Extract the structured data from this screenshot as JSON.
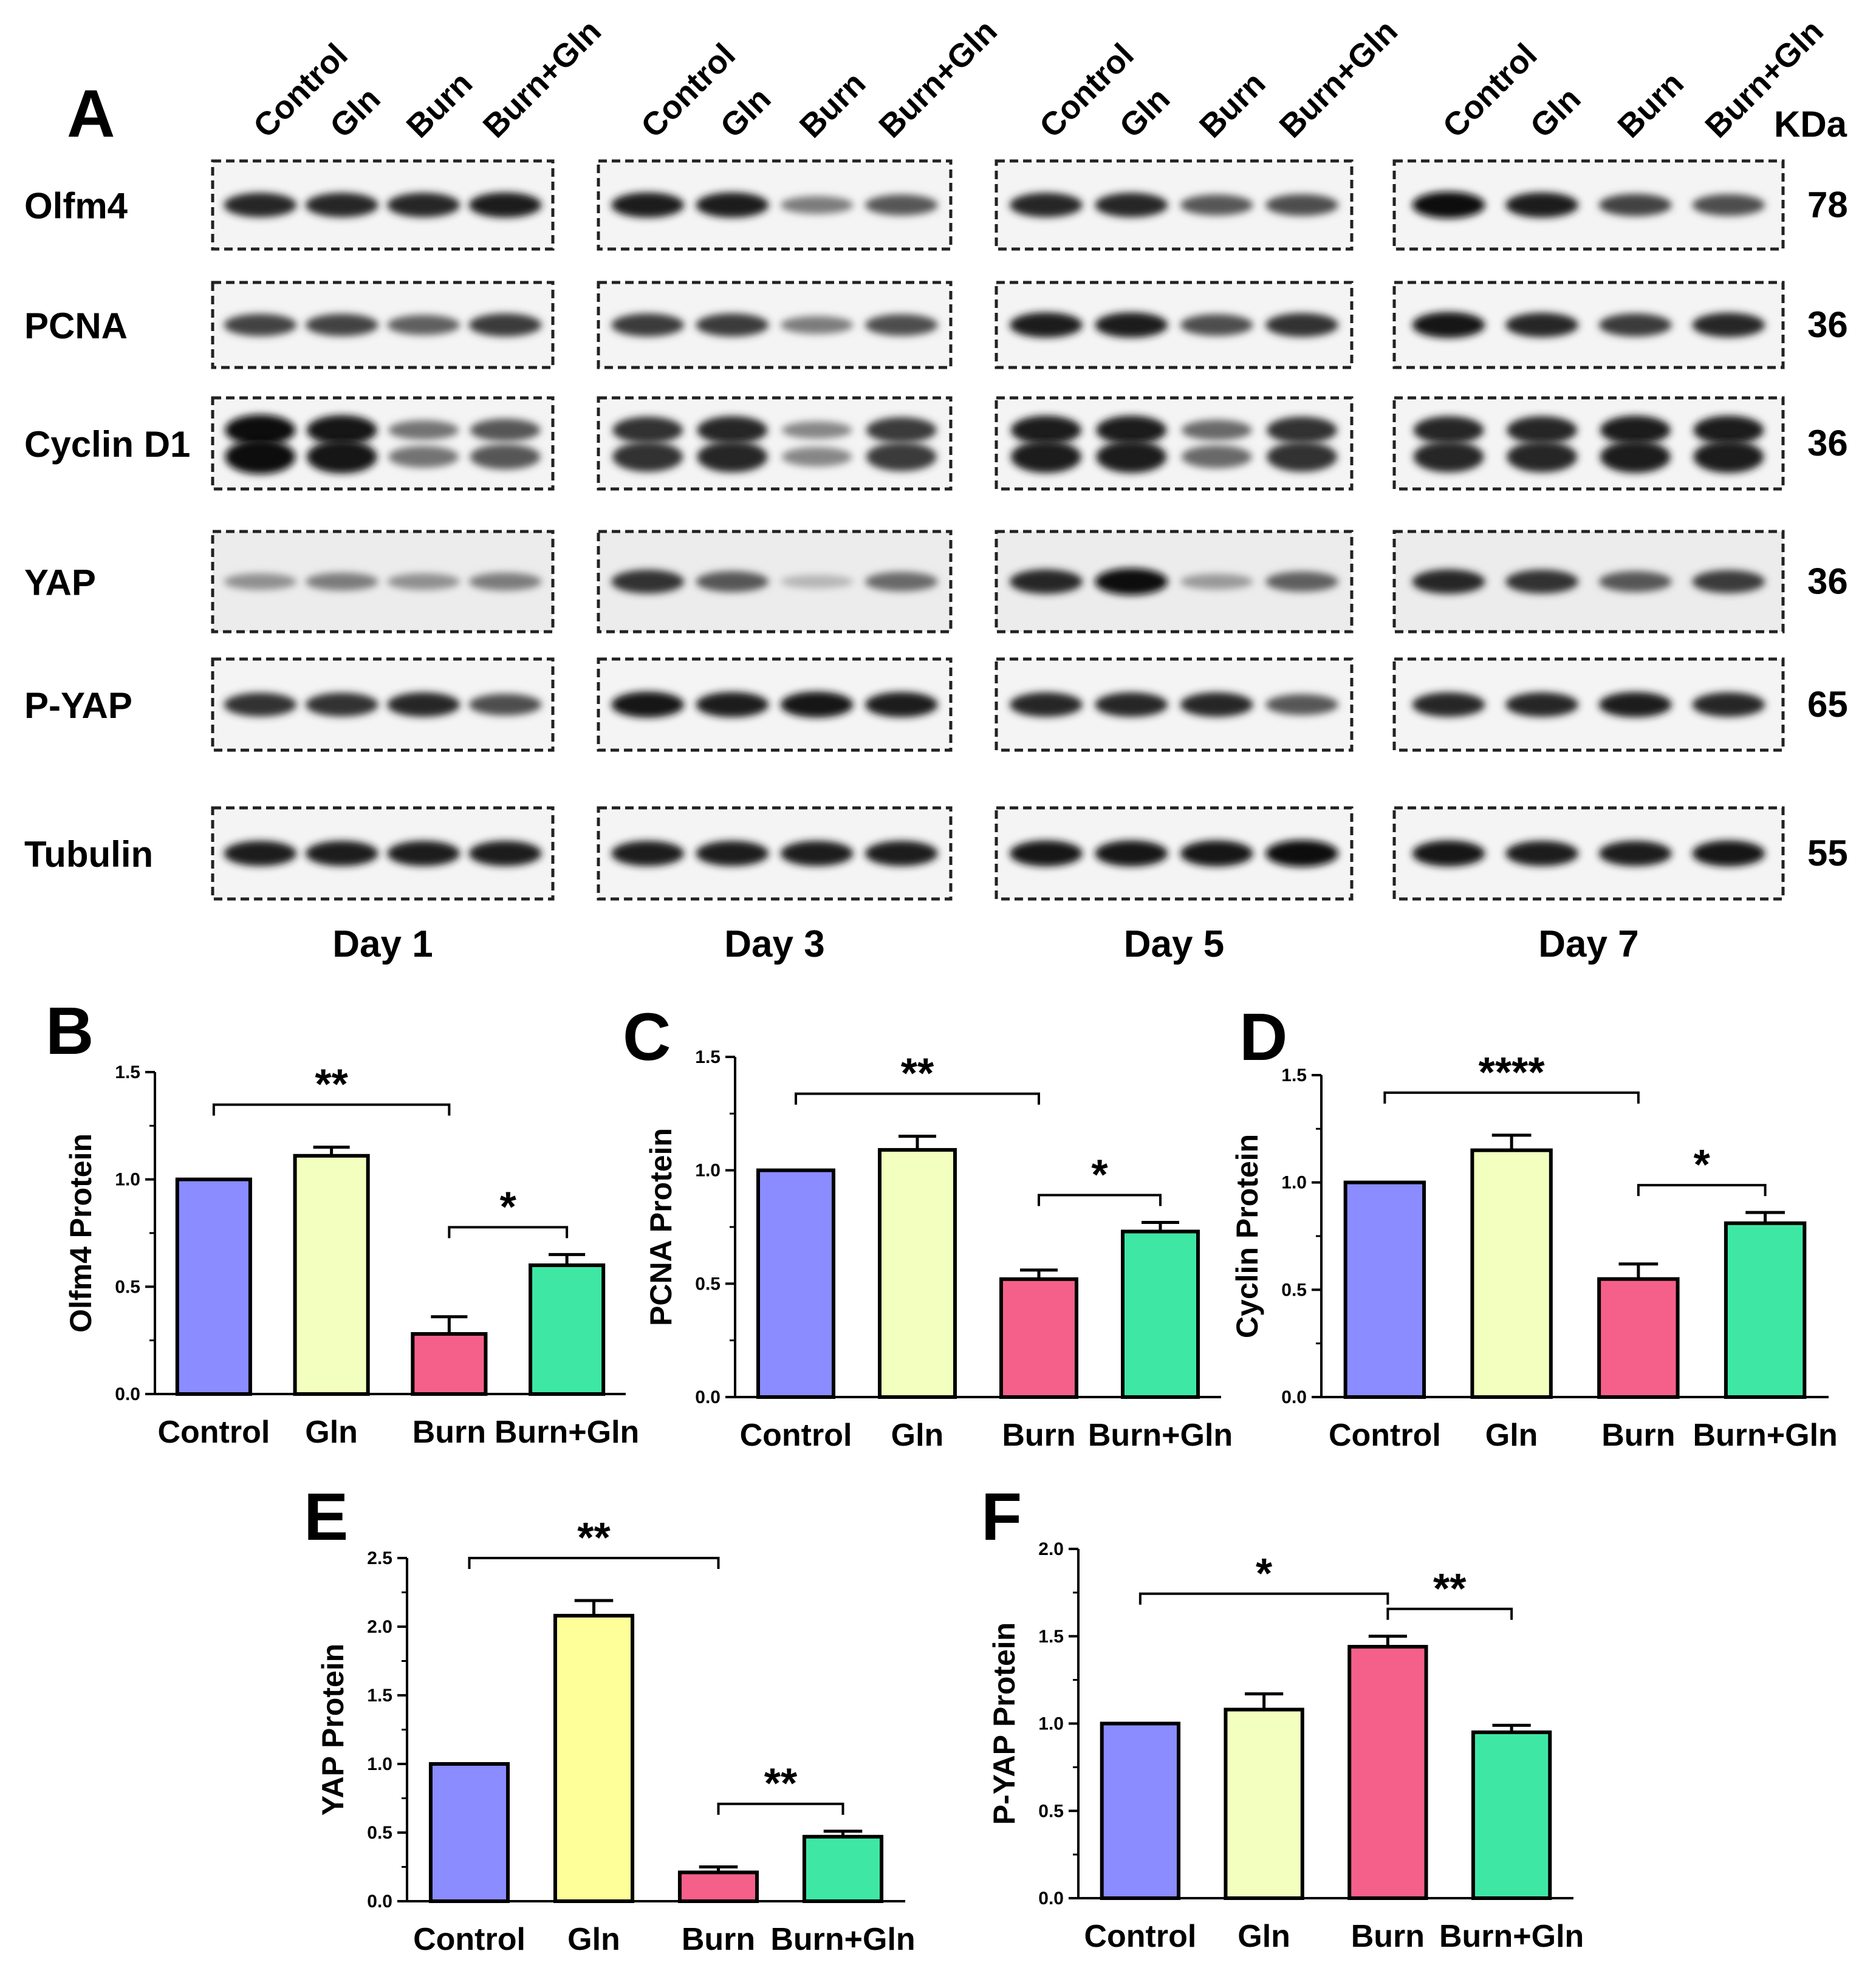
{
  "figure": {
    "panel_a": {
      "letter": "A",
      "lanes": [
        "Control",
        "Gln",
        "Burn",
        "Burn+Gln"
      ],
      "kda_header": "KDa",
      "days": [
        "Day 1",
        "Day 3",
        "Day 5",
        "Day 7"
      ],
      "rows": [
        {
          "label": "Olfm4",
          "kda": "78"
        },
        {
          "label": "PCNA",
          "kda": "36"
        },
        {
          "label": "Cyclin D1",
          "kda": "36"
        },
        {
          "label": "YAP",
          "kda": "36"
        },
        {
          "label": "P-YAP",
          "kda": "65"
        },
        {
          "label": "Tubulin",
          "kda": "55"
        }
      ]
    }
  },
  "chart_data": [
    {
      "panel": "B",
      "type": "bar",
      "ylabel": "Olfm4 Protein",
      "ylim": [
        0,
        1.5
      ],
      "yticks": [
        "0.0",
        "0.5",
        "1.0",
        "1.5"
      ],
      "categories": [
        "Control",
        "Gln",
        "Burn",
        "Burn+Gln"
      ],
      "values": [
        1.0,
        1.11,
        0.28,
        0.6
      ],
      "errors": [
        0,
        0.04,
        0.08,
        0.05
      ],
      "colors": [
        "#8a8cff",
        "#f2ffbf",
        "#f5608a",
        "#3ee8a4"
      ],
      "significance": [
        {
          "from": 0,
          "to": 2,
          "label": "**"
        },
        {
          "from": 2,
          "to": 3,
          "label": "*"
        }
      ]
    },
    {
      "panel": "C",
      "type": "bar",
      "ylabel": "PCNA Protein",
      "ylim": [
        0,
        1.5
      ],
      "yticks": [
        "0.0",
        "0.5",
        "1.0",
        "1.5"
      ],
      "categories": [
        "Control",
        "Gln",
        "Burn",
        "Burn+Gln"
      ],
      "values": [
        1.0,
        1.09,
        0.52,
        0.73
      ],
      "errors": [
        0,
        0.06,
        0.04,
        0.04
      ],
      "colors": [
        "#8a8cff",
        "#f2ffbf",
        "#f5608a",
        "#3ee8a4"
      ],
      "significance": [
        {
          "from": 0,
          "to": 2,
          "label": "**"
        },
        {
          "from": 2,
          "to": 3,
          "label": "*"
        }
      ]
    },
    {
      "panel": "D",
      "type": "bar",
      "ylabel": "Cyclin Protein",
      "ylim": [
        0,
        1.5
      ],
      "yticks": [
        "0.0",
        "0.5",
        "1.0",
        "1.5"
      ],
      "categories": [
        "Control",
        "Gln",
        "Burn",
        "Burn+Gln"
      ],
      "values": [
        1.0,
        1.15,
        0.55,
        0.81
      ],
      "errors": [
        0,
        0.07,
        0.07,
        0.05
      ],
      "colors": [
        "#8a8cff",
        "#f2ffbf",
        "#f5608a",
        "#3ee8a4"
      ],
      "significance": [
        {
          "from": 0,
          "to": 2,
          "label": "****"
        },
        {
          "from": 2,
          "to": 3,
          "label": "*"
        }
      ]
    },
    {
      "panel": "E",
      "type": "bar",
      "ylabel": "YAP Protein",
      "ylim": [
        0,
        2.5
      ],
      "yticks": [
        "0.0",
        "0.5",
        "1.0",
        "1.5",
        "2.0",
        "2.5"
      ],
      "categories": [
        "Control",
        "Gln",
        "Burn",
        "Burn+Gln"
      ],
      "values": [
        1.0,
        2.08,
        0.21,
        0.47
      ],
      "errors": [
        0,
        0.11,
        0.04,
        0.04
      ],
      "colors": [
        "#8a8cff",
        "#ffff99",
        "#f5608a",
        "#3ee8a4"
      ],
      "significance": [
        {
          "from": 0,
          "to": 2,
          "label": "**"
        },
        {
          "from": 2,
          "to": 3,
          "label": "**"
        }
      ]
    },
    {
      "panel": "F",
      "type": "bar",
      "ylabel": "P-YAP Protein",
      "ylim": [
        0,
        2.0
      ],
      "yticks": [
        "0.0",
        "0.5",
        "1.0",
        "1.5",
        "2.0"
      ],
      "categories": [
        "Control",
        "Gln",
        "Burn",
        "Burn+Gln"
      ],
      "values": [
        1.0,
        1.08,
        1.44,
        0.95
      ],
      "errors": [
        0,
        0.09,
        0.06,
        0.04
      ],
      "colors": [
        "#8a8cff",
        "#f2ffbf",
        "#f5608a",
        "#3ee8a4"
      ],
      "significance": [
        {
          "from": 0,
          "to": 2,
          "label": "*"
        },
        {
          "from": 2,
          "to": 3,
          "label": "**"
        }
      ]
    }
  ]
}
